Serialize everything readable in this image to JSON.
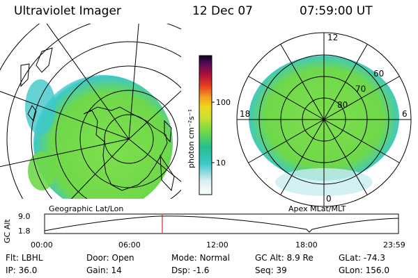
{
  "header": {
    "title": "Ultraviolet Imager",
    "date": "12 Dec 07",
    "time": "07:59:00 UT"
  },
  "geo_panel": {
    "caption": "Geographic Lat/Lon"
  },
  "apex_panel": {
    "caption": "Apex MLat/MLT",
    "mlt_labels": {
      "top": "12",
      "bottom": "0",
      "left": "18",
      "right": "6"
    },
    "lat_labels": [
      "60",
      "70",
      "80"
    ]
  },
  "colorbar": {
    "units": "photon cm⁻²s⁻¹",
    "ticks": [
      "100",
      "10"
    ]
  },
  "altitude_plot": {
    "ylabel": "GC Alt",
    "y_ticks": [
      "9.0",
      "1.8"
    ],
    "x_ticks": [
      "00:00",
      "06:00",
      "12:00",
      "18:00",
      "23:59"
    ],
    "marker_time_hours": 7.983
  },
  "status": [
    [
      {
        "label": "Flt:",
        "value": "LBHL"
      },
      {
        "label": "IP:",
        "value": "36.0"
      }
    ],
    [
      {
        "label": "Door:",
        "value": "Open"
      },
      {
        "label": "Gain:",
        "value": "14"
      }
    ],
    [
      {
        "label": "Mode:",
        "value": "Normal"
      },
      {
        "label": "Dsp:",
        "value": "-1.6"
      }
    ],
    [
      {
        "label": "GC Alt:",
        "value": "8.9 Re"
      },
      {
        "label": "Seq:",
        "value": "39"
      }
    ],
    [
      {
        "label": "GLat:",
        "value": "-74.3"
      },
      {
        "label": "GLon:",
        "value": "156.0"
      }
    ]
  ],
  "colors": {
    "aurora_green": "#6fd84a",
    "aurora_cyan": "#3ec8c8",
    "marker": "#cc0000"
  }
}
